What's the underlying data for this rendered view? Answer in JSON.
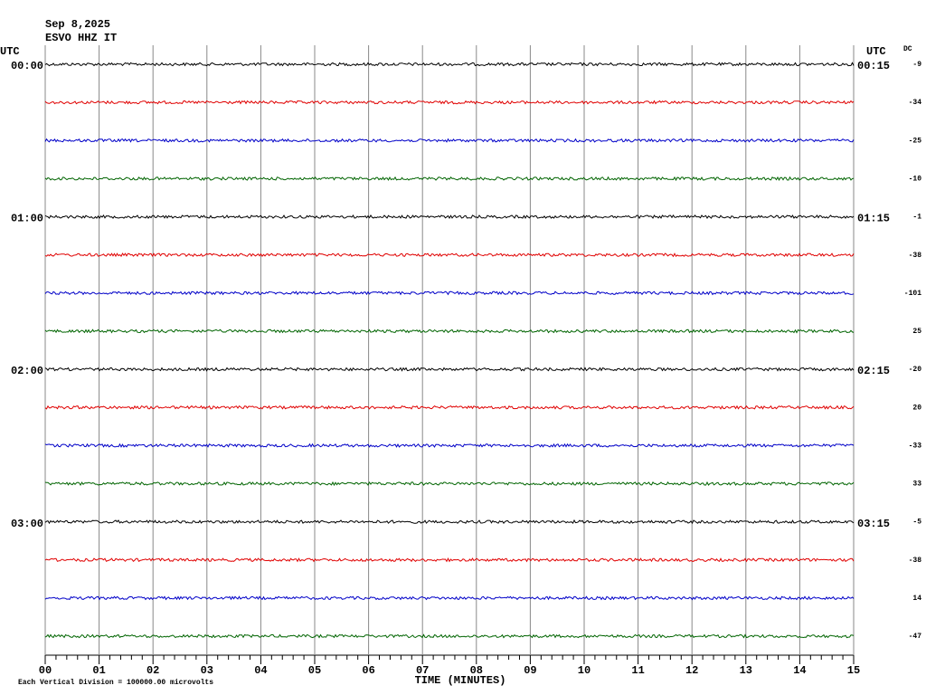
{
  "header": {
    "date": "Sep 8,2025",
    "station": "ESVO HHZ IT"
  },
  "chart_data": {
    "type": "helicorder",
    "left_axis_label": "UTC",
    "right_axis_label": "UTC",
    "dc_label": "DC",
    "x_label": "TIME (MINUTES)",
    "note": "Each Vertical Division = 100000.00 microvolts",
    "xlim": [
      0,
      15
    ],
    "xticks": [
      {
        "value": 0,
        "label": "00"
      },
      {
        "value": 1,
        "label": "01"
      },
      {
        "value": 2,
        "label": "02"
      },
      {
        "value": 3,
        "label": "03"
      },
      {
        "value": 4,
        "label": "04"
      },
      {
        "value": 5,
        "label": "05"
      },
      {
        "value": 6,
        "label": "06"
      },
      {
        "value": 7,
        "label": "07"
      },
      {
        "value": 8,
        "label": "08"
      },
      {
        "value": 9,
        "label": "09"
      },
      {
        "value": 10,
        "label": "10"
      },
      {
        "value": 11,
        "label": "11"
      },
      {
        "value": 12,
        "label": "12"
      },
      {
        "value": 13,
        "label": "13"
      },
      {
        "value": 14,
        "label": "14"
      },
      {
        "value": 15,
        "label": "15"
      }
    ],
    "grid": true,
    "rows": [
      {
        "left": "00:00",
        "right": "00:15",
        "dc": -9,
        "color": "#000000"
      },
      {
        "left": null,
        "right": null,
        "dc": -34,
        "color": "#e00000"
      },
      {
        "left": null,
        "right": null,
        "dc": -25,
        "color": "#0000c8"
      },
      {
        "left": null,
        "right": null,
        "dc": -10,
        "color": "#006400"
      },
      {
        "left": "01:00",
        "right": "01:15",
        "dc": -1,
        "color": "#000000"
      },
      {
        "left": null,
        "right": null,
        "dc": -38,
        "color": "#e00000"
      },
      {
        "left": null,
        "right": null,
        "dc": -101,
        "color": "#0000c8"
      },
      {
        "left": null,
        "right": null,
        "dc": 25,
        "color": "#006400"
      },
      {
        "left": "02:00",
        "right": "02:15",
        "dc": -20,
        "color": "#000000"
      },
      {
        "left": null,
        "right": null,
        "dc": 20,
        "color": "#e00000"
      },
      {
        "left": null,
        "right": null,
        "dc": -33,
        "color": "#0000c8"
      },
      {
        "left": null,
        "right": null,
        "dc": 33,
        "color": "#006400"
      },
      {
        "left": "03:00",
        "right": "03:15",
        "dc": -5,
        "color": "#000000"
      },
      {
        "left": null,
        "right": null,
        "dc": -38,
        "color": "#e00000"
      },
      {
        "left": null,
        "right": null,
        "dc": 14,
        "color": "#0000c8"
      },
      {
        "left": null,
        "right": null,
        "dc": -47,
        "color": "#006400"
      }
    ]
  }
}
